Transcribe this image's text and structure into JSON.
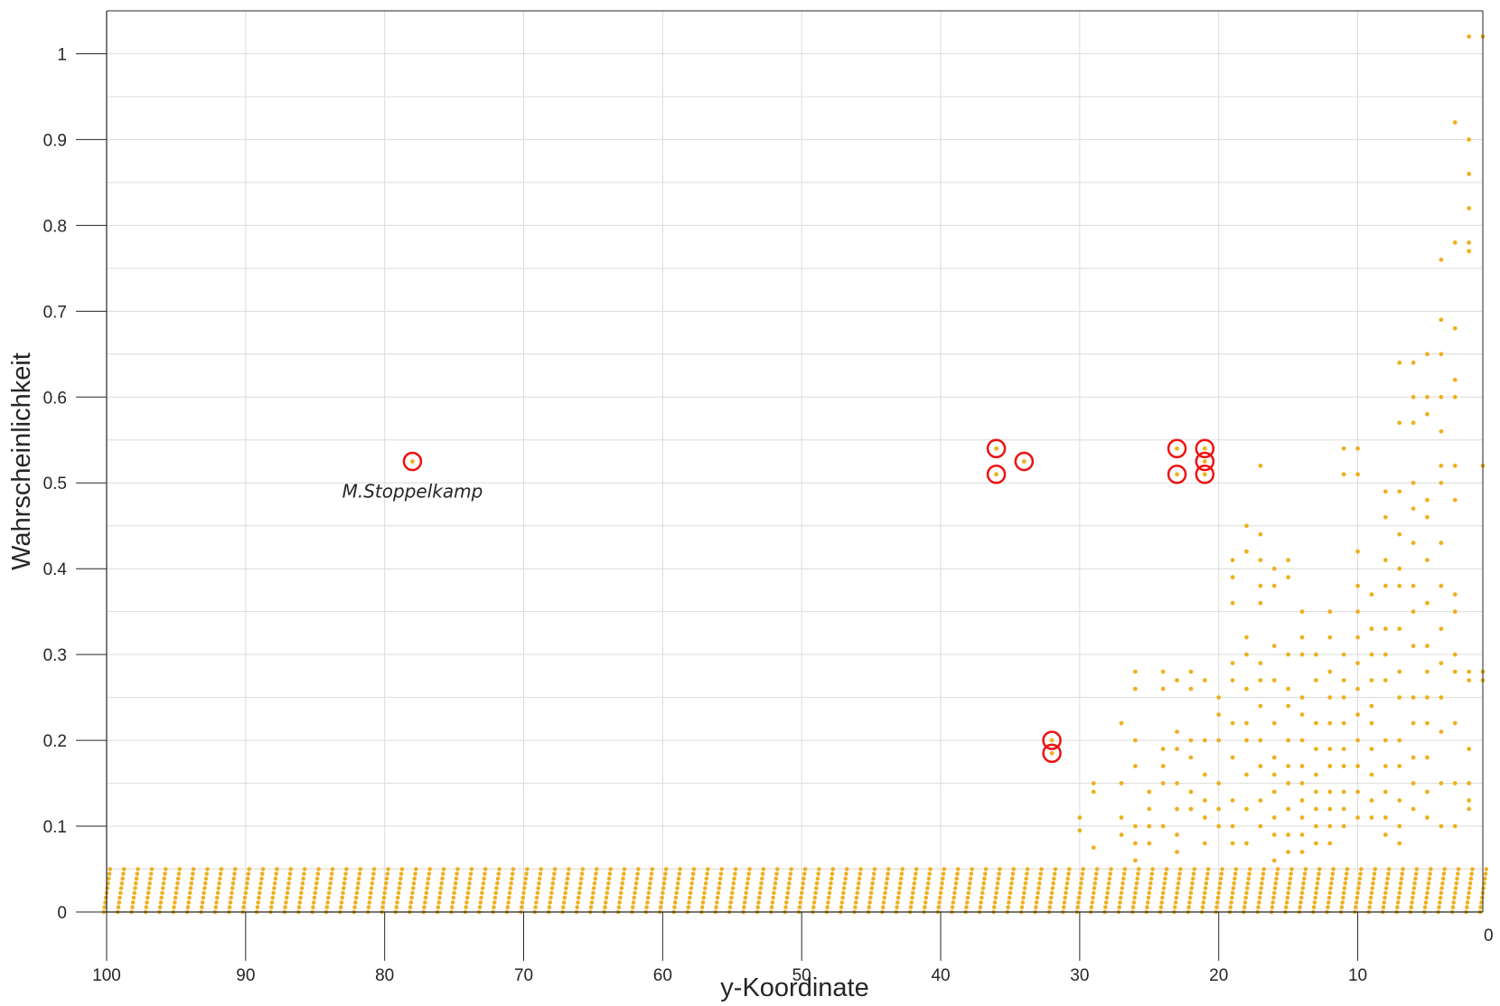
{
  "chart_data": {
    "type": "scatter",
    "title": "",
    "xlabel": "y-Koordinate",
    "ylabel": "Wahrscheinlichkeit",
    "xlim": [
      100,
      1
    ],
    "ylim": [
      0,
      1.05
    ],
    "x_reversed": true,
    "grid": true,
    "x_ticks": [
      100,
      90,
      80,
      70,
      60,
      50,
      40,
      30,
      20,
      10
    ],
    "x_tick_labels": [
      "100",
      "90",
      "80",
      "70",
      "60",
      "50",
      "40",
      "30",
      "20",
      "10"
    ],
    "x_axis_end_label": "0",
    "y_ticks": [
      0,
      0.1,
      0.2,
      0.3,
      0.4,
      0.5,
      0.6,
      0.7,
      0.8,
      0.9,
      1
    ],
    "y_tick_labels": [
      "0",
      "0.1",
      "0.2",
      "0.3",
      "0.4",
      "0.5",
      "0.6",
      "0.7",
      "0.8",
      "0.9",
      "1"
    ],
    "baseline_band": {
      "x_range": [
        100,
        1
      ],
      "y_range": [
        0,
        0.05
      ],
      "note_values_per_x": 10
    },
    "series": [
      {
        "color": "#EDB120",
        "points": [
          [
            29,
            0.15
          ],
          [
            29,
            0.14
          ],
          [
            29,
            0.075
          ],
          [
            30,
            0.11
          ],
          [
            30,
            0.095
          ],
          [
            27,
            0.22
          ],
          [
            27,
            0.15
          ],
          [
            27,
            0.11
          ],
          [
            27,
            0.09
          ],
          [
            26,
            0.28
          ],
          [
            26,
            0.26
          ],
          [
            26,
            0.2
          ],
          [
            26,
            0.17
          ],
          [
            26,
            0.1
          ],
          [
            26,
            0.08
          ],
          [
            26,
            0.06
          ],
          [
            25,
            0.14
          ],
          [
            25,
            0.12
          ],
          [
            25,
            0.1
          ],
          [
            25,
            0.08
          ],
          [
            24,
            0.28
          ],
          [
            24,
            0.26
          ],
          [
            24,
            0.19
          ],
          [
            24,
            0.17
          ],
          [
            24,
            0.15
          ],
          [
            24,
            0.1
          ],
          [
            23,
            0.27
          ],
          [
            23,
            0.21
          ],
          [
            23,
            0.19
          ],
          [
            23,
            0.15
          ],
          [
            23,
            0.12
          ],
          [
            23,
            0.09
          ],
          [
            23,
            0.07
          ],
          [
            22,
            0.28
          ],
          [
            22,
            0.26
          ],
          [
            22,
            0.2
          ],
          [
            22,
            0.18
          ],
          [
            22,
            0.14
          ],
          [
            22,
            0.12
          ],
          [
            21,
            0.27
          ],
          [
            21,
            0.2
          ],
          [
            21,
            0.16
          ],
          [
            21,
            0.13
          ],
          [
            21,
            0.11
          ],
          [
            21,
            0.08
          ],
          [
            20,
            0.25
          ],
          [
            20,
            0.23
          ],
          [
            20,
            0.2
          ],
          [
            20,
            0.15
          ],
          [
            20,
            0.12
          ],
          [
            20,
            0.1
          ],
          [
            19,
            0.41
          ],
          [
            19,
            0.39
          ],
          [
            19,
            0.36
          ],
          [
            19,
            0.29
          ],
          [
            19,
            0.27
          ],
          [
            19,
            0.22
          ],
          [
            19,
            0.18
          ],
          [
            19,
            0.13
          ],
          [
            19,
            0.1
          ],
          [
            19,
            0.08
          ],
          [
            18,
            0.45
          ],
          [
            18,
            0.42
          ],
          [
            18,
            0.32
          ],
          [
            18,
            0.3
          ],
          [
            18,
            0.26
          ],
          [
            18,
            0.22
          ],
          [
            18,
            0.2
          ],
          [
            18,
            0.16
          ],
          [
            18,
            0.12
          ],
          [
            18,
            0.08
          ],
          [
            17,
            0.52
          ],
          [
            17,
            0.44
          ],
          [
            17,
            0.41
          ],
          [
            17,
            0.38
          ],
          [
            17,
            0.36
          ],
          [
            17,
            0.29
          ],
          [
            17,
            0.27
          ],
          [
            17,
            0.24
          ],
          [
            17,
            0.2
          ],
          [
            17,
            0.17
          ],
          [
            17,
            0.13
          ],
          [
            17,
            0.1
          ],
          [
            16,
            0.4
          ],
          [
            16,
            0.38
          ],
          [
            16,
            0.31
          ],
          [
            16,
            0.27
          ],
          [
            16,
            0.22
          ],
          [
            16,
            0.18
          ],
          [
            16,
            0.16
          ],
          [
            16,
            0.14
          ],
          [
            16,
            0.11
          ],
          [
            16,
            0.09
          ],
          [
            16,
            0.06
          ],
          [
            15,
            0.41
          ],
          [
            15,
            0.39
          ],
          [
            15,
            0.3
          ],
          [
            15,
            0.26
          ],
          [
            15,
            0.24
          ],
          [
            15,
            0.2
          ],
          [
            15,
            0.17
          ],
          [
            15,
            0.15
          ],
          [
            15,
            0.12
          ],
          [
            15,
            0.09
          ],
          [
            15,
            0.07
          ],
          [
            14,
            0.35
          ],
          [
            14,
            0.32
          ],
          [
            14,
            0.3
          ],
          [
            14,
            0.25
          ],
          [
            14,
            0.23
          ],
          [
            14,
            0.2
          ],
          [
            14,
            0.17
          ],
          [
            14,
            0.15
          ],
          [
            14,
            0.13
          ],
          [
            14,
            0.11
          ],
          [
            14,
            0.09
          ],
          [
            14,
            0.07
          ],
          [
            13,
            0.3
          ],
          [
            13,
            0.27
          ],
          [
            13,
            0.22
          ],
          [
            13,
            0.19
          ],
          [
            13,
            0.16
          ],
          [
            13,
            0.14
          ],
          [
            13,
            0.12
          ],
          [
            13,
            0.1
          ],
          [
            13,
            0.08
          ],
          [
            12,
            0.35
          ],
          [
            12,
            0.32
          ],
          [
            12,
            0.28
          ],
          [
            12,
            0.25
          ],
          [
            12,
            0.22
          ],
          [
            12,
            0.19
          ],
          [
            12,
            0.17
          ],
          [
            12,
            0.14
          ],
          [
            12,
            0.12
          ],
          [
            12,
            0.1
          ],
          [
            12,
            0.08
          ],
          [
            11,
            0.54
          ],
          [
            11,
            0.51
          ],
          [
            11,
            0.3
          ],
          [
            11,
            0.27
          ],
          [
            11,
            0.25
          ],
          [
            11,
            0.22
          ],
          [
            11,
            0.19
          ],
          [
            11,
            0.17
          ],
          [
            11,
            0.14
          ],
          [
            11,
            0.12
          ],
          [
            11,
            0.1
          ],
          [
            10,
            0.54
          ],
          [
            10,
            0.51
          ],
          [
            10,
            0.42
          ],
          [
            10,
            0.38
          ],
          [
            10,
            0.35
          ],
          [
            10,
            0.32
          ],
          [
            10,
            0.29
          ],
          [
            10,
            0.26
          ],
          [
            10,
            0.23
          ],
          [
            10,
            0.2
          ],
          [
            10,
            0.17
          ],
          [
            10,
            0.14
          ],
          [
            10,
            0.11
          ],
          [
            9,
            0.37
          ],
          [
            9,
            0.33
          ],
          [
            9,
            0.3
          ],
          [
            9,
            0.27
          ],
          [
            9,
            0.24
          ],
          [
            9,
            0.22
          ],
          [
            9,
            0.19
          ],
          [
            9,
            0.16
          ],
          [
            9,
            0.13
          ],
          [
            9,
            0.11
          ],
          [
            8,
            0.49
          ],
          [
            8,
            0.46
          ],
          [
            8,
            0.41
          ],
          [
            8,
            0.38
          ],
          [
            8,
            0.33
          ],
          [
            8,
            0.3
          ],
          [
            8,
            0.27
          ],
          [
            8,
            0.2
          ],
          [
            8,
            0.17
          ],
          [
            8,
            0.14
          ],
          [
            8,
            0.11
          ],
          [
            8,
            0.09
          ],
          [
            7,
            0.64
          ],
          [
            7,
            0.57
          ],
          [
            7,
            0.49
          ],
          [
            7,
            0.44
          ],
          [
            7,
            0.4
          ],
          [
            7,
            0.38
          ],
          [
            7,
            0.33
          ],
          [
            7,
            0.28
          ],
          [
            7,
            0.25
          ],
          [
            7,
            0.2
          ],
          [
            7,
            0.17
          ],
          [
            7,
            0.13
          ],
          [
            7,
            0.1
          ],
          [
            7,
            0.08
          ],
          [
            6,
            0.64
          ],
          [
            6,
            0.6
          ],
          [
            6,
            0.57
          ],
          [
            6,
            0.5
          ],
          [
            6,
            0.47
          ],
          [
            6,
            0.43
          ],
          [
            6,
            0.38
          ],
          [
            6,
            0.35
          ],
          [
            6,
            0.31
          ],
          [
            6,
            0.25
          ],
          [
            6,
            0.22
          ],
          [
            6,
            0.18
          ],
          [
            6,
            0.15
          ],
          [
            6,
            0.12
          ],
          [
            5,
            0.65
          ],
          [
            5,
            0.6
          ],
          [
            5,
            0.58
          ],
          [
            5,
            0.48
          ],
          [
            5,
            0.46
          ],
          [
            5,
            0.41
          ],
          [
            5,
            0.36
          ],
          [
            5,
            0.31
          ],
          [
            5,
            0.28
          ],
          [
            5,
            0.25
          ],
          [
            5,
            0.22
          ],
          [
            5,
            0.18
          ],
          [
            5,
            0.14
          ],
          [
            5,
            0.11
          ],
          [
            4,
            0.76
          ],
          [
            4,
            0.69
          ],
          [
            4,
            0.65
          ],
          [
            4,
            0.6
          ],
          [
            4,
            0.56
          ],
          [
            4,
            0.52
          ],
          [
            4,
            0.5
          ],
          [
            4,
            0.43
          ],
          [
            4,
            0.38
          ],
          [
            4,
            0.33
          ],
          [
            4,
            0.29
          ],
          [
            4,
            0.25
          ],
          [
            4,
            0.21
          ],
          [
            4,
            0.15
          ],
          [
            4,
            0.1
          ],
          [
            3,
            0.92
          ],
          [
            3,
            0.78
          ],
          [
            3,
            0.68
          ],
          [
            3,
            0.62
          ],
          [
            3,
            0.6
          ],
          [
            3,
            0.52
          ],
          [
            3,
            0.48
          ],
          [
            3,
            0.37
          ],
          [
            3,
            0.35
          ],
          [
            3,
            0.3
          ],
          [
            3,
            0.28
          ],
          [
            3,
            0.22
          ],
          [
            3,
            0.15
          ],
          [
            3,
            0.1
          ],
          [
            2,
            1.02
          ],
          [
            2,
            0.9
          ],
          [
            2,
            0.86
          ],
          [
            2,
            0.82
          ],
          [
            2,
            0.78
          ],
          [
            2,
            0.77
          ],
          [
            2,
            0.28
          ],
          [
            2,
            0.27
          ],
          [
            2,
            0.19
          ],
          [
            2,
            0.15
          ],
          [
            2,
            0.13
          ],
          [
            2,
            0.12
          ],
          [
            1,
            1.02
          ],
          [
            1,
            0.52
          ],
          [
            1,
            0.28
          ],
          [
            1,
            0.27
          ]
        ]
      }
    ],
    "highlighted_points": [
      {
        "x": 78,
        "y": 0.525
      },
      {
        "x": 36,
        "y": 0.54
      },
      {
        "x": 36,
        "y": 0.51
      },
      {
        "x": 34,
        "y": 0.525
      },
      {
        "x": 32,
        "y": 0.2
      },
      {
        "x": 32,
        "y": 0.185
      },
      {
        "x": 23,
        "y": 0.54
      },
      {
        "x": 23,
        "y": 0.51
      },
      {
        "x": 21,
        "y": 0.54
      },
      {
        "x": 21,
        "y": 0.525
      },
      {
        "x": 21,
        "y": 0.51
      }
    ],
    "highlight_color": "#EE1111",
    "annotations": [
      {
        "text": "M.Stoppelkamp",
        "x": 78,
        "y": 0.49
      }
    ]
  }
}
